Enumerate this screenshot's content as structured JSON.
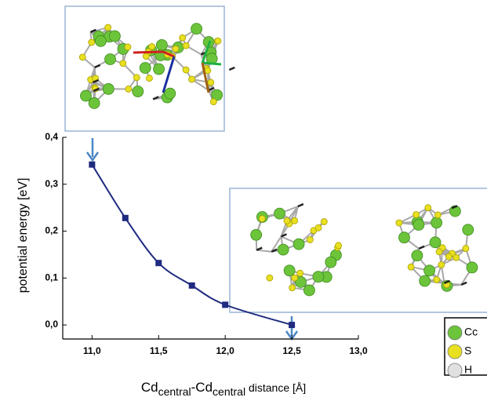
{
  "chart_data": {
    "type": "line",
    "x": [
      11.0,
      11.25,
      11.5,
      11.75,
      12.0,
      12.5
    ],
    "series": [
      {
        "values": [
          0.342,
          0.228,
          0.132,
          0.084,
          0.043,
          0.0
        ],
        "color": "#1f2a80"
      }
    ],
    "xlim": [
      10.78,
      13.0
    ],
    "ylim": [
      -0.03,
      0.4
    ],
    "xticks": [
      {
        "value": 11,
        "label": "11,0"
      },
      {
        "value": 11.5,
        "label": "11,5"
      },
      {
        "value": 12,
        "label": "12,0"
      },
      {
        "value": 12.5,
        "label": "12,5"
      },
      {
        "value": 13,
        "label": "13,0"
      }
    ],
    "yticks": [
      {
        "value": 0,
        "label": "0,0"
      },
      {
        "value": 0.1,
        "label": "0,1"
      },
      {
        "value": 0.2,
        "label": "0,2"
      },
      {
        "value": 0.3,
        "label": "0,3"
      },
      {
        "value": 0.4,
        "label": "0,4"
      }
    ],
    "ylabel": "potential energy [eV]",
    "xlabel": {
      "parts": [
        "Cd",
        "central",
        "-Cd",
        "central",
        " distance [Å]"
      ]
    },
    "legend": [
      "Cc",
      "S",
      "H"
    ]
  }
}
